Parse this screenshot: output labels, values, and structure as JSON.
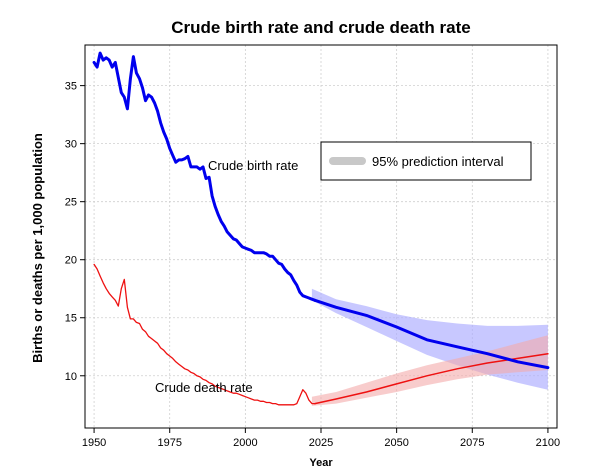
{
  "chart_data": {
    "type": "line",
    "title": "Crude birth rate and crude death rate",
    "xlabel": "Year",
    "ylabel": "Births or deaths per 1,000 population",
    "xlim": [
      1947,
      2103
    ],
    "ylim": [
      5.5,
      38.5
    ],
    "x_ticks": [
      1950,
      1975,
      2000,
      2025,
      2050,
      2075,
      2100
    ],
    "y_ticks": [
      10,
      15,
      20,
      25,
      30,
      35
    ],
    "grid": true,
    "legend_position": "center-right",
    "legend_label": "95% prediction interval",
    "annotations": [
      "Crude birth rate",
      "Crude death rate"
    ],
    "colors": {
      "birth": "#0000ee",
      "death": "#ee1111",
      "birth_band": "#aaaaff",
      "death_band": "#f4aaaa",
      "legend_swatch": "#c8c8c8",
      "grid": "#cfcfcf"
    },
    "series": [
      {
        "key": "birth_estimate",
        "x": [
          1950,
          1951,
          1952,
          1953,
          1954,
          1955,
          1956,
          1957,
          1958,
          1959,
          1960,
          1961,
          1962,
          1963,
          1964,
          1965,
          1966,
          1967,
          1968,
          1969,
          1970,
          1971,
          1972,
          1973,
          1974,
          1975,
          1976,
          1977,
          1978,
          1979,
          1980,
          1981,
          1982,
          1983,
          1984,
          1985,
          1986,
          1987,
          1988,
          1989,
          1990,
          1991,
          1992,
          1993,
          1994,
          1995,
          1996,
          1997,
          1998,
          1999,
          2000,
          2001,
          2002,
          2003,
          2004,
          2005,
          2006,
          2007,
          2008,
          2009,
          2010,
          2011,
          2012,
          2013,
          2014,
          2015,
          2016,
          2017,
          2018,
          2019,
          2020,
          2021,
          2022,
          2023
        ],
        "y": [
          37.0,
          36.6,
          37.8,
          37.2,
          37.4,
          37.2,
          36.6,
          37.0,
          35.7,
          34.4,
          34.0,
          33.0,
          35.6,
          37.5,
          36.1,
          35.6,
          34.8,
          33.7,
          34.2,
          34.0,
          33.5,
          32.8,
          31.8,
          31.0,
          30.4,
          29.6,
          29.0,
          28.4,
          28.6,
          28.6,
          28.7,
          28.9,
          28.0,
          28.0,
          28.0,
          27.8,
          28.0,
          27.0,
          27.1,
          25.5,
          24.6,
          23.9,
          23.3,
          22.9,
          22.4,
          22.1,
          21.8,
          21.7,
          21.4,
          21.1,
          21.0,
          20.9,
          20.8,
          20.6,
          20.6,
          20.6,
          20.6,
          20.5,
          20.3,
          20.3,
          20.0,
          19.7,
          19.6,
          19.2,
          18.9,
          18.7,
          18.2,
          17.8,
          17.2,
          16.9,
          16.8,
          16.7,
          16.6,
          16.5
        ]
      },
      {
        "key": "birth_projection",
        "x": [
          2023,
          2030,
          2040,
          2050,
          2060,
          2070,
          2080,
          2090,
          2100
        ],
        "y": [
          16.5,
          15.9,
          15.2,
          14.2,
          13.1,
          12.5,
          11.9,
          11.2,
          10.7
        ]
      },
      {
        "key": "death_estimate",
        "x": [
          1950,
          1951,
          1952,
          1953,
          1954,
          1955,
          1956,
          1957,
          1958,
          1959,
          1960,
          1961,
          1962,
          1963,
          1964,
          1965,
          1966,
          1967,
          1968,
          1969,
          1970,
          1971,
          1972,
          1973,
          1974,
          1975,
          1976,
          1977,
          1978,
          1979,
          1980,
          1981,
          1982,
          1983,
          1984,
          1985,
          1986,
          1987,
          1988,
          1989,
          1990,
          1991,
          1992,
          1993,
          1994,
          1995,
          1996,
          1997,
          1998,
          1999,
          2000,
          2001,
          2002,
          2003,
          2004,
          2005,
          2006,
          2007,
          2008,
          2009,
          2010,
          2011,
          2012,
          2013,
          2014,
          2015,
          2016,
          2017,
          2018,
          2019,
          2020,
          2021,
          2022,
          2023
        ],
        "y": [
          19.6,
          19.2,
          18.6,
          18.0,
          17.5,
          17.1,
          16.8,
          16.5,
          16.0,
          17.5,
          18.3,
          15.9,
          14.9,
          14.9,
          14.6,
          14.5,
          14.0,
          13.8,
          13.4,
          13.2,
          13.0,
          12.8,
          12.4,
          12.2,
          11.9,
          11.7,
          11.5,
          11.2,
          11.0,
          10.8,
          10.6,
          10.5,
          10.3,
          10.2,
          10.0,
          9.9,
          9.7,
          9.6,
          9.4,
          9.3,
          9.1,
          9.0,
          8.9,
          8.8,
          8.7,
          8.6,
          8.5,
          8.5,
          8.4,
          8.3,
          8.2,
          8.1,
          8.0,
          7.9,
          7.9,
          7.8,
          7.8,
          7.7,
          7.7,
          7.6,
          7.6,
          7.5,
          7.5,
          7.5,
          7.5,
          7.5,
          7.5,
          7.6,
          8.2,
          8.8,
          8.5,
          7.9,
          7.6,
          7.6
        ]
      },
      {
        "key": "death_projection",
        "x": [
          2023,
          2030,
          2040,
          2050,
          2060,
          2070,
          2080,
          2090,
          2100
        ],
        "y": [
          7.6,
          8.0,
          8.6,
          9.3,
          10.0,
          10.6,
          11.1,
          11.5,
          11.9
        ]
      }
    ],
    "intervals": [
      {
        "key": "birth_interval",
        "x": [
          2022,
          2030,
          2040,
          2050,
          2060,
          2070,
          2080,
          2090,
          2100
        ],
        "lower": [
          16.5,
          15.4,
          14.2,
          13.0,
          11.8,
          10.9,
          10.1,
          9.4,
          8.8
        ],
        "upper": [
          17.5,
          16.6,
          16.0,
          15.3,
          14.8,
          14.5,
          14.3,
          14.3,
          14.4
        ]
      },
      {
        "key": "death_interval",
        "x": [
          2022,
          2030,
          2040,
          2050,
          2060,
          2070,
          2080,
          2090,
          2100
        ],
        "lower": [
          7.4,
          7.6,
          8.1,
          8.6,
          9.2,
          9.7,
          10.1,
          10.3,
          10.5
        ],
        "upper": [
          8.2,
          8.6,
          9.4,
          10.2,
          10.9,
          11.5,
          12.1,
          12.8,
          13.5
        ]
      }
    ]
  }
}
